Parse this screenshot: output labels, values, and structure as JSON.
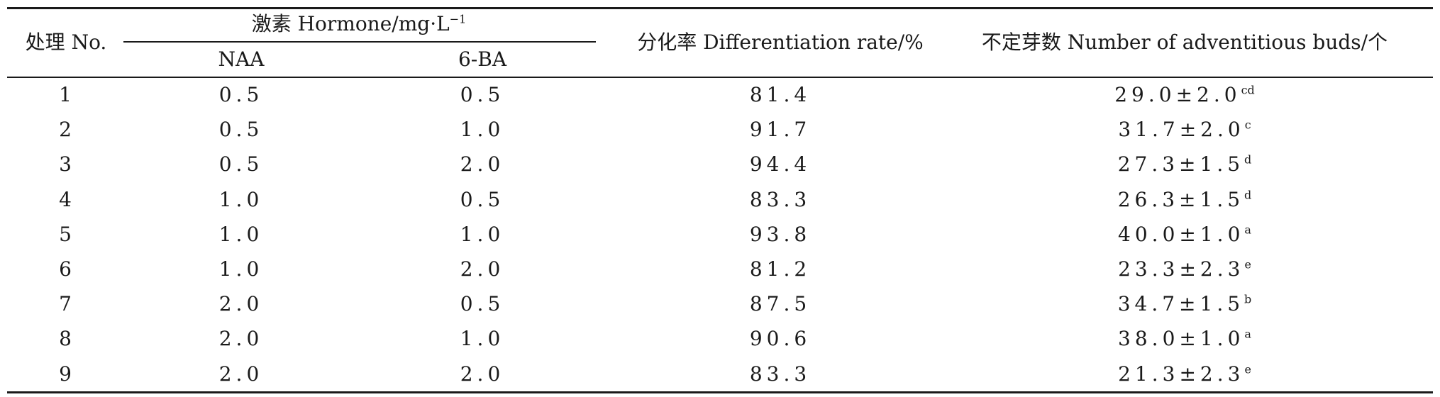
{
  "table": {
    "header": {
      "treatment": "处理 No.",
      "hormone_prefix": "激素 Hormone/mg·L",
      "hormone_exp": "−1",
      "naa": "NAA",
      "ba": "6-BA",
      "diff_rate": "分化率 Differentiation rate/%",
      "buds": "不定芽数 Number of adventitious buds/个"
    },
    "rows": [
      {
        "no": "1",
        "naa": "0.5",
        "ba": "0.5",
        "rate": "81.4",
        "buds": "29.0±2.0",
        "sup": "cd"
      },
      {
        "no": "2",
        "naa": "0.5",
        "ba": "1.0",
        "rate": "91.7",
        "buds": "31.7±2.0",
        "sup": "c"
      },
      {
        "no": "3",
        "naa": "0.5",
        "ba": "2.0",
        "rate": "94.4",
        "buds": "27.3±1.5",
        "sup": "d"
      },
      {
        "no": "4",
        "naa": "1.0",
        "ba": "0.5",
        "rate": "83.3",
        "buds": "26.3±1.5",
        "sup": "d"
      },
      {
        "no": "5",
        "naa": "1.0",
        "ba": "1.0",
        "rate": "93.8",
        "buds": "40.0±1.0",
        "sup": "a"
      },
      {
        "no": "6",
        "naa": "1.0",
        "ba": "2.0",
        "rate": "81.2",
        "buds": "23.3±2.3",
        "sup": "e"
      },
      {
        "no": "7",
        "naa": "2.0",
        "ba": "0.5",
        "rate": "87.5",
        "buds": "34.7±1.5",
        "sup": "b"
      },
      {
        "no": "8",
        "naa": "2.0",
        "ba": "1.0",
        "rate": "90.6",
        "buds": "38.0±1.0",
        "sup": "a"
      },
      {
        "no": "9",
        "naa": "2.0",
        "ba": "2.0",
        "rate": "83.3",
        "buds": "21.3±2.3",
        "sup": "e"
      }
    ]
  }
}
